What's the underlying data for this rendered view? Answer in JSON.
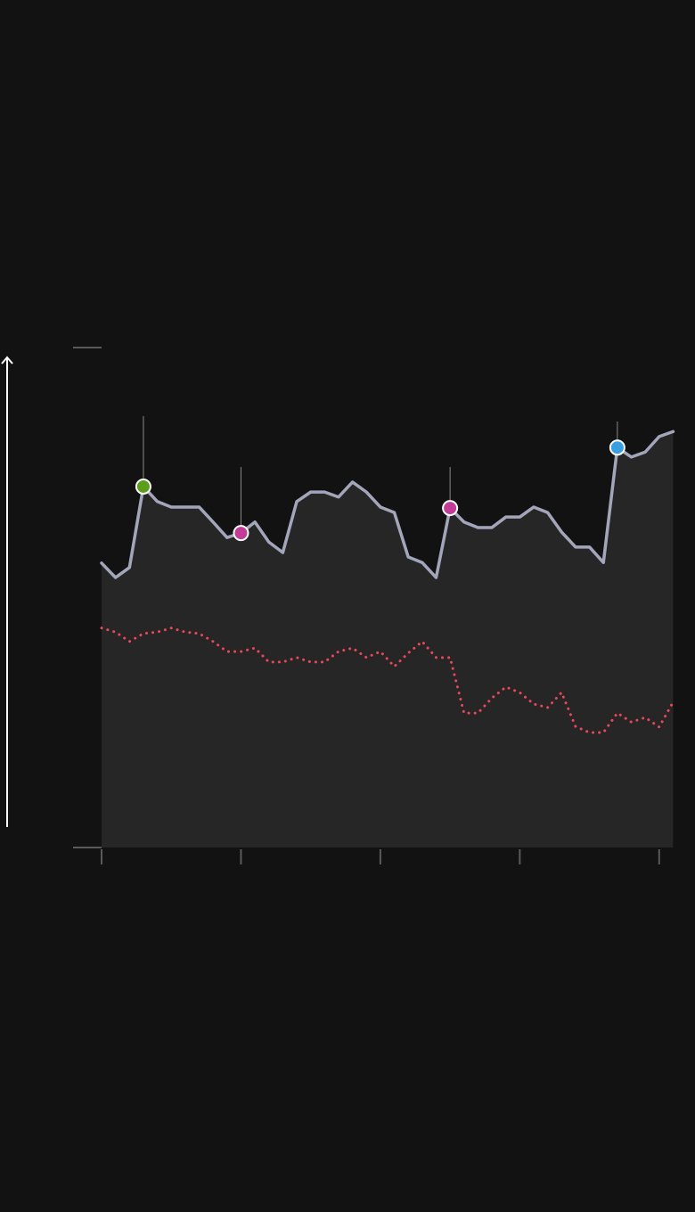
{
  "chart_data": {
    "type": "line",
    "x": [
      0,
      1,
      2,
      3,
      4,
      5,
      6,
      7,
      8,
      9,
      10,
      11,
      12,
      13,
      14,
      15,
      16,
      17,
      18,
      19,
      20,
      21,
      22,
      23,
      24,
      25,
      26,
      27,
      28,
      29,
      30,
      31,
      32,
      33,
      34,
      35,
      36,
      37,
      38,
      39,
      40,
      41
    ],
    "series": [
      {
        "color": "#a3a6ba",
        "style": "solid",
        "area": true,
        "values": [
          56.9,
          54.0,
          56.0,
          72.2,
          69.2,
          68.1,
          68.1,
          68.1,
          65.1,
          62.0,
          62.9,
          65.1,
          61.1,
          59.0,
          69.2,
          71.1,
          71.1,
          70.1,
          73.1,
          71.1,
          68.1,
          67.0,
          58.1,
          57.0,
          54.0,
          67.9,
          65.1,
          64.0,
          64.0,
          66.1,
          66.1,
          68.1,
          67.0,
          63.1,
          60.1,
          60.1,
          57.0,
          80.0,
          78.1,
          79.1,
          82.2,
          83.2
        ]
      },
      {
        "color": "#e8475a",
        "style": "dotted",
        "values": [
          43.9,
          43.1,
          41.2,
          42.8,
          43.1,
          43.9,
          43.1,
          42.8,
          41.2,
          39.2,
          39.2,
          39.9,
          37.1,
          37.1,
          38.0,
          37.1,
          37.1,
          39.2,
          39.9,
          38.0,
          39.2,
          36.2,
          38.9,
          41.2,
          38.0,
          38.0,
          26.9,
          26.9,
          29.9,
          32.1,
          31.0,
          28.7,
          28.0,
          31.0,
          24.2,
          23.0,
          23.0,
          26.9,
          25.1,
          26.0,
          24.1,
          29.1
        ]
      }
    ],
    "markers": [
      {
        "x": 3,
        "color": "#5b9e1c",
        "stem_top": 86.3
      },
      {
        "x": 10,
        "color": "#c23b96",
        "stem_top": 76.1
      },
      {
        "x": 25,
        "color": "#c23b96",
        "stem_top": 76.1
      },
      {
        "x": 37,
        "color": "#3a9fe0",
        "stem_top": 85.2
      }
    ],
    "xlim": [
      0,
      41.1
    ],
    "xticks": [
      0,
      10,
      20,
      30,
      40
    ],
    "ylim": [
      0,
      100
    ],
    "yticks": [
      0,
      100
    ],
    "grid": false
  }
}
